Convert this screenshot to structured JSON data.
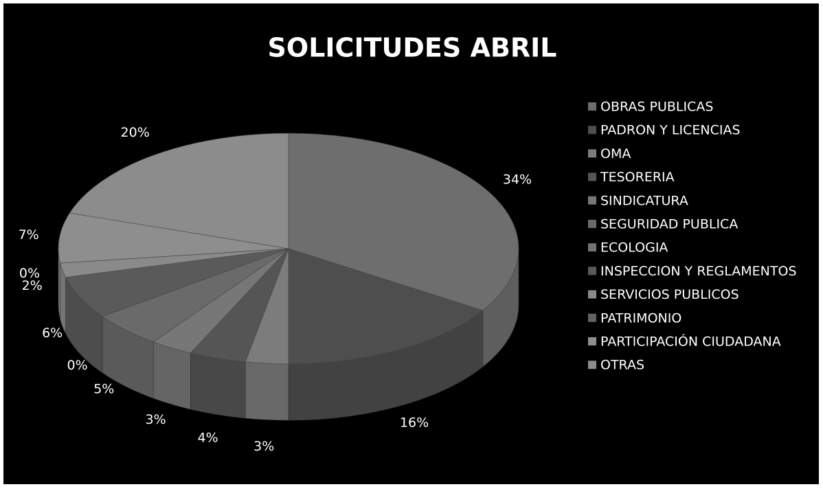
{
  "chart_data": {
    "type": "pie",
    "title": "SOLICITUDES ABRIL",
    "categories": [
      "OBRAS PUBLICAS",
      "PADRON Y LICENCIAS",
      "OMA",
      "TESORERIA",
      "SINDICATURA",
      "SEGURIDAD PUBLICA",
      "ECOLOGIA",
      "INSPECCION Y REGLAMENTOS",
      "SERVICIOS PUBLICOS",
      "PATRIMONIO",
      "PARTICIPACIÓN CIUDADANA",
      "OTRAS"
    ],
    "values": [
      34,
      16,
      3,
      4,
      3,
      5,
      0,
      6,
      2,
      0,
      7,
      20
    ],
    "value_labels": [
      "34%",
      "16%",
      "3%",
      "4%",
      "3%",
      "5%",
      "0%",
      "6%",
      "2%",
      "0%",
      "7%",
      "20%"
    ],
    "colors": [
      "#6e6e6e",
      "#4e4e4e",
      "#7c7c7c",
      "#555555",
      "#777777",
      "#6a6a6a",
      "#737373",
      "#5a5a5a",
      "#8a8a8a",
      "#626262",
      "#8e8e8e",
      "#8c8c8c"
    ],
    "legend": "right"
  }
}
